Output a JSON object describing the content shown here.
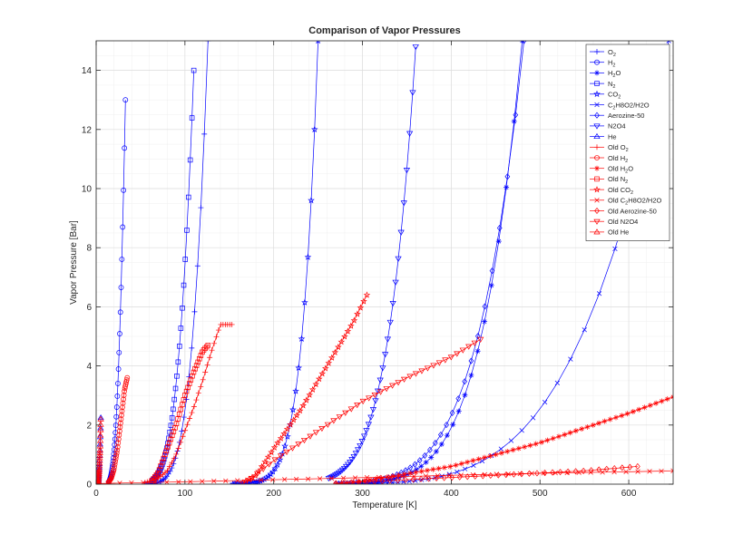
{
  "chart_data": {
    "type": "line",
    "title": "Comparison of Vapor Pressures",
    "xlabel": "Temperature [K]",
    "ylabel": "Vapor Pressure [Bar]",
    "xlim": [
      0,
      650
    ],
    "ylim": [
      0,
      15
    ],
    "xticks": [
      0,
      100,
      200,
      300,
      400,
      500,
      600
    ],
    "yticks": [
      0,
      2,
      4,
      6,
      8,
      10,
      12,
      14
    ],
    "grid": true,
    "minor_grid": true,
    "legend_position": "top-right",
    "colors": {
      "new": "#0000ff",
      "old": "#ff0000"
    },
    "series": [
      {
        "name": "O",
        "sub": "2",
        "post": "",
        "group": "new",
        "marker": "plus",
        "model": "clausius",
        "x0": 54,
        "x1": 126,
        "p0": 0.0015,
        "p1": 15,
        "n": 40
      },
      {
        "name": "H",
        "sub": "2",
        "post": "",
        "group": "new",
        "marker": "circle",
        "model": "clausius",
        "x0": 14,
        "x1": 33,
        "p0": 0.07,
        "p1": 13.0,
        "n": 40
      },
      {
        "name": "H",
        "sub": "2",
        "post": "O",
        "group": "new",
        "marker": "asterisk",
        "model": "clausius",
        "x0": 273,
        "x1": 480,
        "p0": 0.006,
        "p1": 15,
        "n": 40
      },
      {
        "name": "N",
        "sub": "2",
        "post": "",
        "group": "new",
        "marker": "square",
        "model": "clausius",
        "x0": 63,
        "x1": 110,
        "p0": 0.12,
        "p1": 14,
        "n": 40
      },
      {
        "name": "CO",
        "sub": "2",
        "post": "",
        "group": "new",
        "marker": "star",
        "model": "clausius",
        "x0": 154,
        "x1": 250,
        "p0": 0.0025,
        "p1": 15,
        "n": 40
      },
      {
        "name": "C",
        "sub": "2",
        "post": "H8O2/H2O",
        "group": "new",
        "marker": "x",
        "model": "clausius",
        "x0": 275,
        "x1": 645,
        "p0": 0.004,
        "p1": 15,
        "n": 40
      },
      {
        "name": "Aerozine-50",
        "sub": "",
        "post": "",
        "group": "new",
        "marker": "diamond",
        "model": "clausius",
        "x0": 270,
        "x1": 482,
        "p0": 0.012,
        "p1": 15,
        "n": 40
      },
      {
        "name": "N2O4",
        "sub": "",
        "post": "",
        "group": "new",
        "marker": "tri-down",
        "model": "clausius",
        "x0": 262,
        "x1": 360,
        "p0": 0.2,
        "p1": 14.8,
        "n": 40
      },
      {
        "name": "He",
        "sub": "",
        "post": "",
        "group": "new",
        "marker": "tri-up",
        "model": "clausius",
        "x0": 1.5,
        "x1": 5.2,
        "p0": 0.003,
        "p1": 2.25,
        "n": 40
      },
      {
        "name": "Old O",
        "sub": "2",
        "post": "",
        "group": "old",
        "marker": "plus",
        "model": "linear",
        "points": [
          [
            55,
            0.05
          ],
          [
            60,
            0.1
          ],
          [
            70,
            0.2
          ],
          [
            80,
            0.45
          ],
          [
            90,
            1.0
          ],
          [
            100,
            1.8
          ],
          [
            110,
            2.6
          ],
          [
            120,
            3.5
          ],
          [
            130,
            4.5
          ],
          [
            140,
            5.4
          ],
          [
            153,
            5.4
          ]
        ],
        "n": 40
      },
      {
        "name": "Old H",
        "sub": "2",
        "post": "",
        "group": "old",
        "marker": "circle",
        "model": "linear",
        "points": [
          [
            14,
            0.07
          ],
          [
            17,
            0.2
          ],
          [
            20,
            0.5
          ],
          [
            24,
            1.2
          ],
          [
            28,
            2.2
          ],
          [
            32,
            3.2
          ],
          [
            35,
            3.6
          ]
        ],
        "n": 40
      },
      {
        "name": "Old H",
        "sub": "2",
        "post": "O",
        "group": "old",
        "marker": "asterisk",
        "model": "linear",
        "points": [
          [
            270,
            0.01
          ],
          [
            300,
            0.1
          ],
          [
            400,
            0.6
          ],
          [
            500,
            1.4
          ],
          [
            600,
            2.4
          ],
          [
            650,
            2.95
          ]
        ],
        "n": 60
      },
      {
        "name": "Old N",
        "sub": "2",
        "post": "",
        "group": "old",
        "marker": "square",
        "model": "linear",
        "points": [
          [
            63,
            0.12
          ],
          [
            70,
            0.4
          ],
          [
            80,
            1.2
          ],
          [
            90,
            2.0
          ],
          [
            100,
            3.0
          ],
          [
            110,
            3.8
          ],
          [
            120,
            4.5
          ],
          [
            126,
            4.7
          ]
        ],
        "n": 40
      },
      {
        "name": "Old CO",
        "sub": "2",
        "post": "",
        "group": "old",
        "marker": "star",
        "model": "linear",
        "points": [
          [
            165,
            0.05
          ],
          [
            180,
            0.3
          ],
          [
            200,
            1.2
          ],
          [
            230,
            2.5
          ],
          [
            260,
            4.0
          ],
          [
            290,
            5.5
          ],
          [
            305,
            6.4
          ]
        ],
        "n": 40
      },
      {
        "name": "Old C",
        "sub": "2",
        "post": "H8O2/H2O",
        "group": "old",
        "marker": "x",
        "model": "linear",
        "points": [
          [
            0,
            0.02
          ],
          [
            100,
            0.08
          ],
          [
            200,
            0.15
          ],
          [
            300,
            0.22
          ],
          [
            400,
            0.3
          ],
          [
            500,
            0.37
          ],
          [
            600,
            0.42
          ],
          [
            650,
            0.45
          ]
        ],
        "n": 50
      },
      {
        "name": "Old Aerozine-50",
        "sub": "",
        "post": "",
        "group": "old",
        "marker": "diamond",
        "model": "linear",
        "points": [
          [
            270,
            0.03
          ],
          [
            350,
            0.15
          ],
          [
            450,
            0.3
          ],
          [
            550,
            0.45
          ],
          [
            610,
            0.6
          ]
        ],
        "n": 40
      },
      {
        "name": "Old N2O4",
        "sub": "",
        "post": "",
        "group": "old",
        "marker": "tri-down",
        "model": "linear",
        "points": [
          [
            175,
            0.2
          ],
          [
            200,
            0.8
          ],
          [
            250,
            1.8
          ],
          [
            300,
            2.8
          ],
          [
            350,
            3.6
          ],
          [
            400,
            4.3
          ],
          [
            433,
            4.9
          ]
        ],
        "n": 40
      },
      {
        "name": "Old He",
        "sub": "",
        "post": "",
        "group": "old",
        "marker": "tri-up",
        "model": "linear",
        "points": [
          [
            1.5,
            0.003
          ],
          [
            2.5,
            0.1
          ],
          [
            3.5,
            0.5
          ],
          [
            4.5,
            1.2
          ],
          [
            5.2,
            2.2
          ]
        ],
        "n": 30
      }
    ]
  }
}
